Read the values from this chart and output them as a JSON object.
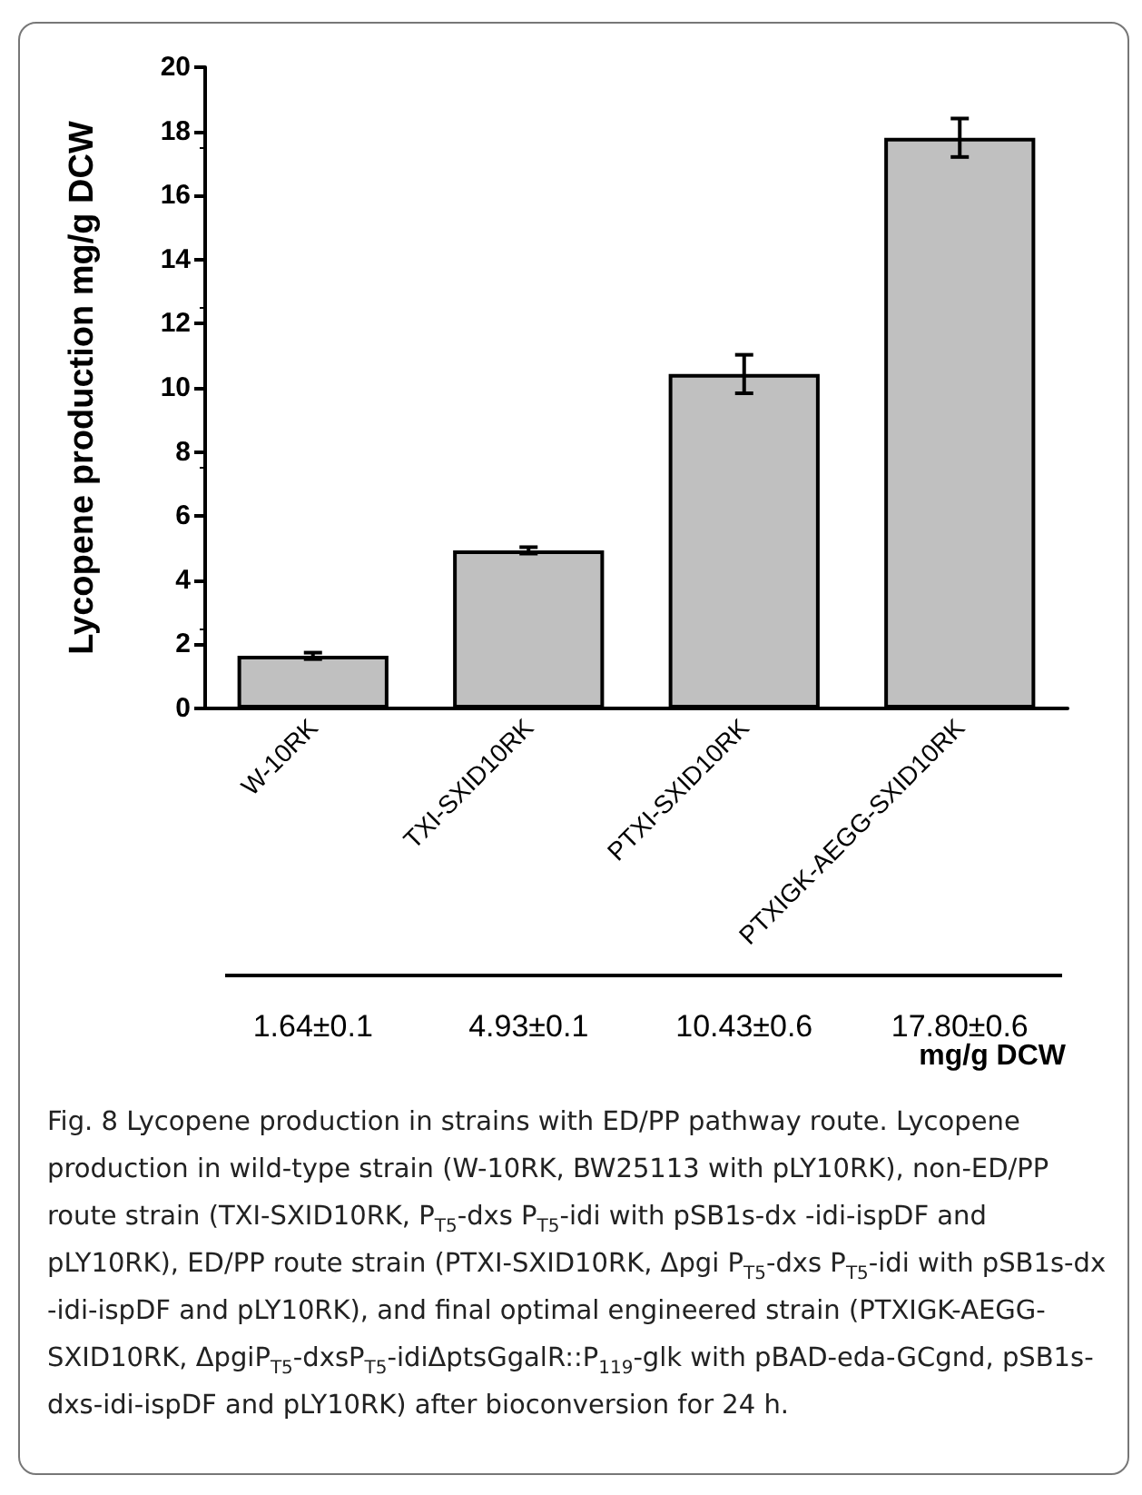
{
  "chart_data": {
    "type": "bar",
    "ylabel": "Lycopene production mg/g DCW",
    "categories": [
      "W-10RK",
      "TXI-SXID10RK",
      "PTXI-SXID10RK",
      "PTXIGK-AEGG-SXID10RK"
    ],
    "values": [
      1.64,
      4.93,
      10.43,
      17.8
    ],
    "errors": [
      0.1,
      0.1,
      0.6,
      0.6
    ],
    "value_labels": [
      "1.64±0.1",
      "4.93±0.1",
      "10.43±0.6",
      "17.80±0.6"
    ],
    "color": "#c0c0c0",
    "ylim": [
      0,
      20
    ],
    "yticks": [
      0,
      2,
      4,
      6,
      8,
      10,
      12,
      14,
      16,
      18,
      20
    ],
    "grid": false,
    "annotations": [
      "mg/g DCW",
      "Fig. 8  Lycopene production in strains with ED/PP pathway route. Lycopene production in wild-type strain (W-10RK, BW25113 with pLY10RK), non-ED/PP route strain (TXI-SXID10RK, P$_{T5}$-dxs P$_{T5}$-idi with pSB1s-dx -idi-ispDF and pLY10RK), ED/PP route strain (PTXI-SXID10RK, Δpgi P$_{T5}$-dxs P$_{T5}$-idi with pSB1s-dx -idi-ispDF and pLY10RK), and final optimal engineered strain (PTXIGK-AEGG-SXID10RK, ΔpgiP$_{T5}$-dxsP$_{T5}$-idiΔptsGgalR::P$_{119}$-glk with pBAD-eda-GCgnd, pSB1s-dxs-idi-ispDF and pLY10RK) after bioconversion for 24 h."
    ]
  }
}
